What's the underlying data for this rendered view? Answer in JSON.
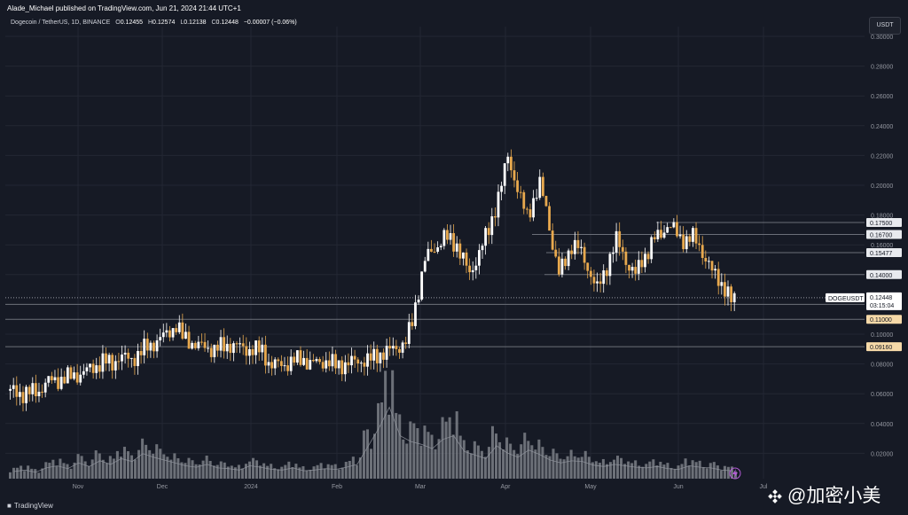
{
  "header": {
    "published": "Alade_Michael published on TradingView.com, Jun 21, 2024 21:44 UTC+1"
  },
  "symbol": {
    "name": "Dogecoin / TetherUS, 1D, BINANCE",
    "open_label": "O",
    "open": "0.12455",
    "high_label": "H",
    "high": "0.12574",
    "low_label": "L",
    "low": "0.12138",
    "close_label": "C",
    "close": "0.12448",
    "change": "−0.00007 (−0.06%)"
  },
  "currency_button": "USDT",
  "colors": {
    "background": "#161a25",
    "up_candle": "#ffffff",
    "down_candle": "#e8a94e",
    "grid": "#232733",
    "level_line": "#6b6f78",
    "volume": "#8a8d94",
    "volume_ma": "#9598a1"
  },
  "price_labels": {
    "symbol_tag": "DOGEUSDT",
    "current_price": "0.12448",
    "countdown": "03:15:04"
  },
  "footer": {
    "brand": "TradingView"
  },
  "watermark": {
    "text": "@加密小美"
  },
  "chart_data": {
    "type": "candlestick",
    "title": "Dogecoin / TetherUS, 1D, BINANCE",
    "ylim": [
      0.0,
      0.3
    ],
    "y_ticks": [
      "0.30000",
      "0.28000",
      "0.26000",
      "0.24000",
      "0.22000",
      "0.20000",
      "0.18000",
      "0.16000",
      "0.14000",
      "0.12000",
      "0.10000",
      "0.08000",
      "0.06000",
      "0.04000",
      "0.02000"
    ],
    "x_ticks": [
      "Nov",
      "Dec",
      "2024",
      "Feb",
      "Mar",
      "Apr",
      "May",
      "Jun",
      "Jul"
    ],
    "grid": true,
    "horizontal_levels": [
      {
        "value": 0.175,
        "label": "0.17500"
      },
      {
        "value": 0.167,
        "label": "0.16700"
      },
      {
        "value": 0.15477,
        "label": "0.15477"
      },
      {
        "value": 0.14,
        "label": "0.14000"
      },
      {
        "value": 0.12,
        "label": "0.12000"
      },
      {
        "value": 0.11,
        "label": "0.11000"
      },
      {
        "value": 0.0916,
        "label": "0.09160"
      }
    ],
    "current_price": 0.12448,
    "close_path": [
      [
        0,
        0.062
      ],
      [
        10,
        0.06
      ],
      [
        20,
        0.062
      ],
      [
        25,
        0.068
      ],
      [
        35,
        0.07
      ],
      [
        45,
        0.073
      ],
      [
        55,
        0.078
      ],
      [
        60,
        0.082
      ],
      [
        66,
        0.08
      ],
      [
        70,
        0.085
      ],
      [
        78,
        0.083
      ],
      [
        86,
        0.09
      ],
      [
        92,
        0.094
      ],
      [
        100,
        0.1
      ],
      [
        106,
        0.106
      ],
      [
        110,
        0.098
      ],
      [
        115,
        0.095
      ],
      [
        120,
        0.092
      ],
      [
        130,
        0.09
      ],
      [
        140,
        0.093
      ],
      [
        150,
        0.09
      ],
      [
        160,
        0.089
      ],
      [
        165,
        0.079
      ],
      [
        175,
        0.08
      ],
      [
        185,
        0.084
      ],
      [
        190,
        0.08
      ],
      [
        200,
        0.082
      ],
      [
        206,
        0.079
      ],
      [
        212,
        0.08
      ],
      [
        220,
        0.082
      ],
      [
        228,
        0.083
      ],
      [
        234,
        0.087
      ],
      [
        240,
        0.089
      ],
      [
        246,
        0.092
      ],
      [
        250,
        0.095
      ],
      [
        254,
        0.108
      ],
      [
        258,
        0.13
      ],
      [
        262,
        0.15
      ],
      [
        266,
        0.155
      ],
      [
        270,
        0.16
      ],
      [
        274,
        0.165
      ],
      [
        278,
        0.163
      ],
      [
        282,
        0.16
      ],
      [
        286,
        0.15
      ],
      [
        290,
        0.14
      ],
      [
        294,
        0.15
      ],
      [
        298,
        0.16
      ],
      [
        302,
        0.17
      ],
      [
        306,
        0.185
      ],
      [
        310,
        0.2
      ],
      [
        314,
        0.22
      ],
      [
        318,
        0.205
      ],
      [
        322,
        0.19
      ],
      [
        326,
        0.18
      ],
      [
        330,
        0.19
      ],
      [
        334,
        0.2
      ],
      [
        338,
        0.185
      ],
      [
        342,
        0.16
      ],
      [
        346,
        0.14
      ],
      [
        350,
        0.15
      ],
      [
        354,
        0.16
      ],
      [
        358,
        0.158
      ],
      [
        362,
        0.15
      ],
      [
        366,
        0.14
      ],
      [
        370,
        0.13
      ],
      [
        374,
        0.14
      ],
      [
        378,
        0.152
      ],
      [
        382,
        0.163
      ],
      [
        386,
        0.155
      ],
      [
        390,
        0.145
      ],
      [
        394,
        0.14
      ],
      [
        398,
        0.15
      ],
      [
        402,
        0.156
      ],
      [
        406,
        0.164
      ],
      [
        410,
        0.168
      ],
      [
        414,
        0.173
      ],
      [
        418,
        0.17
      ],
      [
        422,
        0.165
      ],
      [
        426,
        0.163
      ],
      [
        430,
        0.165
      ],
      [
        434,
        0.16
      ],
      [
        438,
        0.15
      ],
      [
        442,
        0.142
      ],
      [
        446,
        0.138
      ],
      [
        450,
        0.13
      ],
      [
        454,
        0.122
      ],
      [
        457,
        0.125
      ]
    ],
    "volume_relative": [
      0.1,
      0.12,
      0.09,
      0.15,
      0.18,
      0.14,
      0.22,
      0.17,
      0.25,
      0.2,
      0.28,
      0.24,
      0.35,
      0.3,
      0.26,
      0.22,
      0.18,
      0.16,
      0.2,
      0.15,
      0.14,
      0.12,
      0.18,
      0.16,
      0.13,
      0.12,
      0.15,
      0.11,
      0.12,
      0.14,
      0.13,
      0.16,
      0.2,
      0.45,
      0.7,
      1.0,
      0.6,
      0.52,
      0.48,
      0.42,
      0.55,
      0.6,
      0.38,
      0.33,
      0.28,
      0.46,
      0.36,
      0.3,
      0.4,
      0.34,
      0.26,
      0.22,
      0.25,
      0.24,
      0.19,
      0.17,
      0.2,
      0.18,
      0.16,
      0.15,
      0.17,
      0.14,
      0.13,
      0.18,
      0.16,
      0.15,
      0.12,
      0.11
    ]
  }
}
